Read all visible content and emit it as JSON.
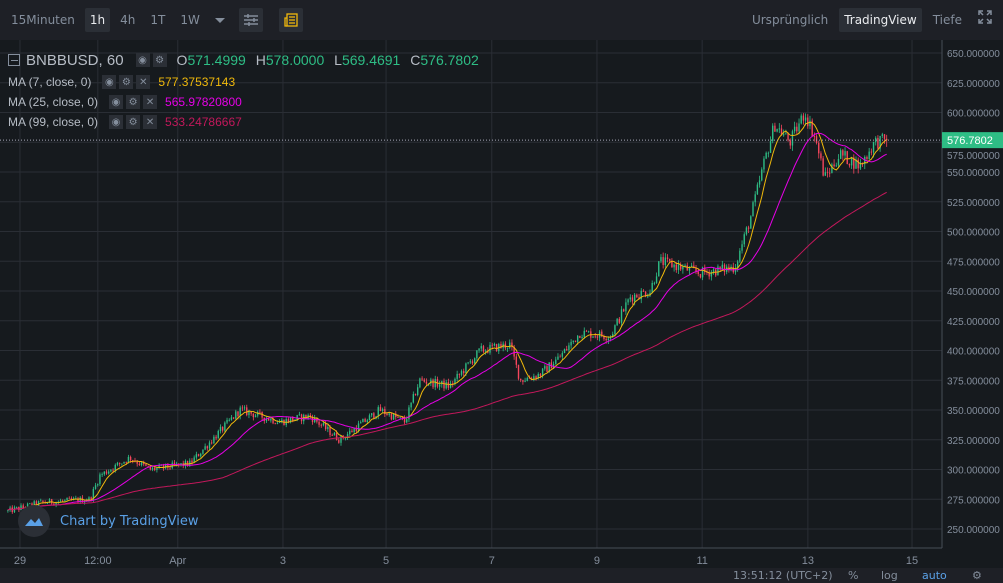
{
  "toolbar": {
    "intervals": [
      "15Minuten",
      "1h",
      "4h",
      "1T",
      "1W"
    ],
    "active_interval": "1h",
    "views": [
      "Ursprünglich",
      "TradingView",
      "Tiefe"
    ],
    "active_view": "TradingView"
  },
  "legend": {
    "symbol": "BNBBUSD, 60",
    "o_label": "O",
    "o": "571.4999",
    "h_label": "H",
    "h": "578.0000",
    "l_label": "L",
    "l": "569.4691",
    "c_label": "C",
    "c": "576.7802",
    "mas": [
      {
        "label": "MA (7, close, 0)",
        "value": "577.37537143",
        "color": "#f0b90b",
        "period": 7
      },
      {
        "label": "MA (25, close, 0)",
        "value": "565.97820800",
        "color": "#e600e6",
        "period": 25
      },
      {
        "label": "MA (99, close, 0)",
        "value": "533.24786667",
        "color": "#c2185b",
        "period": 99
      }
    ]
  },
  "watermark": "Chart by TradingView",
  "last_price": "576.7802",
  "status": {
    "time": "13:51:12 (UTC+2)",
    "percent": "%",
    "log": "log",
    "auto": "auto"
  },
  "colors": {
    "up": "#2ebd85",
    "down": "#f6465d",
    "last": "#2ebd85"
  },
  "chart_data": {
    "type": "candlestick",
    "y_ticks": [
      "650.000000",
      "625.000000",
      "600.000000",
      "575.000000",
      "550.000000",
      "525.000000",
      "500.000000",
      "475.000000",
      "450.000000",
      "425.000000",
      "400.000000",
      "375.000000",
      "350.000000",
      "325.000000",
      "300.000000",
      "275.000000",
      "250.000000"
    ],
    "ylim": [
      250,
      650
    ],
    "xlim_days": [
      -0.38,
      17.53
    ],
    "x_ticks": [
      {
        "label": "29",
        "t": 0
      },
      {
        "label": "12:00",
        "t": 1.48
      },
      {
        "label": "Apr",
        "t": 3.0
      },
      {
        "label": "3",
        "t": 5.0
      },
      {
        "label": "5",
        "t": 6.96
      },
      {
        "label": "7",
        "t": 8.97
      },
      {
        "label": "9",
        "t": 10.97
      },
      {
        "label": "11",
        "t": 12.97
      },
      {
        "label": "13",
        "t": 14.98
      },
      {
        "label": "15",
        "t": 16.96
      }
    ],
    "price_path": [
      [
        -0.23,
        265
      ],
      [
        0.38,
        272
      ],
      [
        1.33,
        275
      ],
      [
        1.52,
        295
      ],
      [
        2.09,
        310
      ],
      [
        2.47,
        300
      ],
      [
        3.23,
        305
      ],
      [
        4.18,
        350
      ],
      [
        4.94,
        340
      ],
      [
        5.51,
        345
      ],
      [
        6.08,
        325
      ],
      [
        6.84,
        350
      ],
      [
        7.32,
        340
      ],
      [
        7.6,
        375
      ],
      [
        8.17,
        370
      ],
      [
        8.75,
        400
      ],
      [
        9.32,
        405
      ],
      [
        9.51,
        375
      ],
      [
        9.89,
        380
      ],
      [
        10.27,
        395
      ],
      [
        10.65,
        415
      ],
      [
        11.22,
        412
      ],
      [
        11.6,
        445
      ],
      [
        11.98,
        450
      ],
      [
        12.17,
        475
      ],
      [
        12.93,
        465
      ],
      [
        13.59,
        470
      ],
      [
        13.88,
        510
      ],
      [
        14.16,
        560
      ],
      [
        14.35,
        590
      ],
      [
        14.64,
        575
      ],
      [
        14.92,
        600
      ],
      [
        15.11,
        580
      ],
      [
        15.3,
        545
      ],
      [
        15.59,
        565
      ],
      [
        15.97,
        555
      ],
      [
        16.25,
        575
      ],
      [
        16.48,
        577
      ]
    ]
  }
}
